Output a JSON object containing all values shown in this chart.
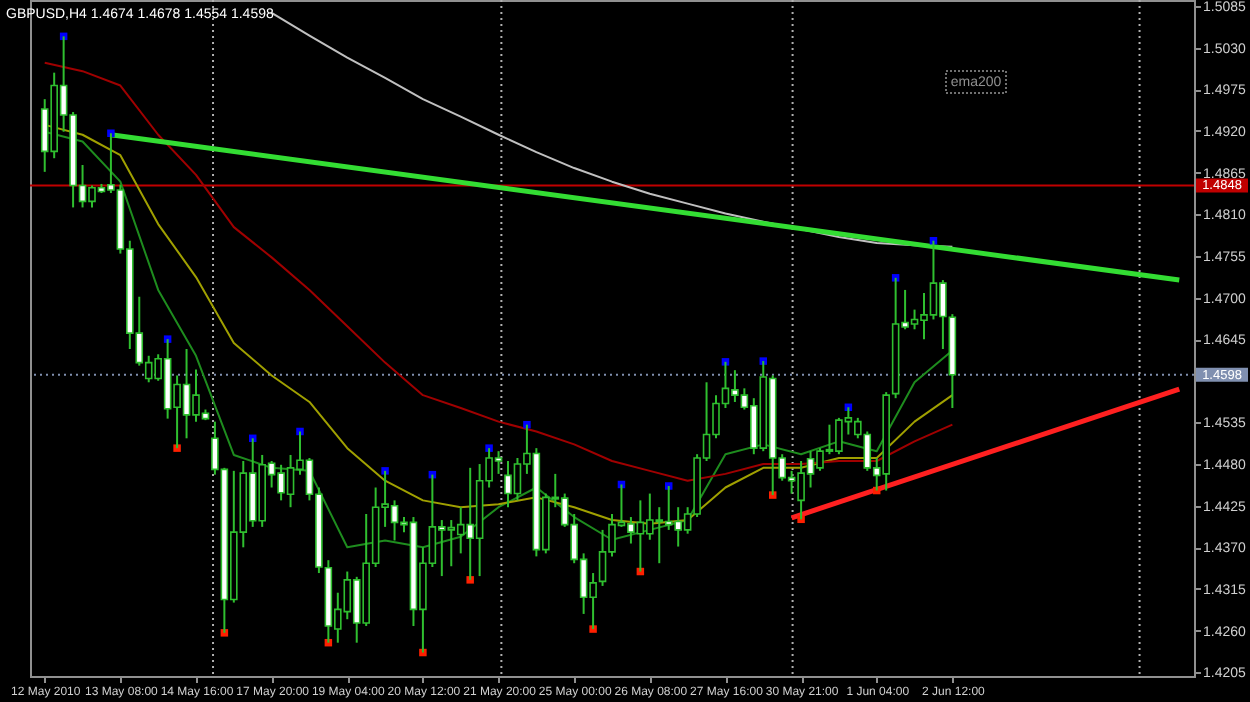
{
  "chart_data": {
    "type": "candlestick",
    "title": "GBPUSD,H4  1.4674 1.4678 1.4554 1.4598",
    "categories": [
      "12 May 2010",
      null,
      null,
      null,
      null,
      null,
      null,
      null,
      "13 May 08:00",
      null,
      null,
      null,
      null,
      null,
      null,
      null,
      "14 May 16:00",
      null,
      null,
      null,
      null,
      null,
      null,
      null,
      "17 May 20:00",
      null,
      null,
      null,
      null,
      null,
      null,
      null,
      "19 May 04:00",
      null,
      null,
      null,
      null,
      null,
      null,
      null,
      "20 May 12:00",
      null,
      null,
      null,
      null,
      null,
      null,
      null,
      "21 May 20:00",
      null,
      null,
      null,
      null,
      null,
      null,
      null,
      "25 May 00:00",
      null,
      null,
      null,
      null,
      null,
      null,
      null,
      "26 May 08:00",
      null,
      null,
      null,
      null,
      null,
      null,
      null,
      "27 May 16:00",
      null,
      null,
      null,
      null,
      null,
      null,
      null,
      "30 May 21:00",
      null,
      null,
      null,
      null,
      null,
      null,
      null,
      "1 Jun 04:00",
      null,
      null,
      null,
      null,
      null,
      null,
      null,
      "2 Jun 12:00",
      null,
      null,
      null,
      null,
      null,
      null,
      null,
      null,
      null,
      null,
      null,
      null,
      null,
      null,
      null,
      null,
      null,
      null,
      null,
      null,
      null,
      null,
      null,
      null
    ],
    "ohlc": [
      [
        1.4949,
        1.4962,
        1.4866,
        1.4893
      ],
      [
        1.4893,
        1.4997,
        1.4884,
        1.498
      ],
      [
        1.498,
        1.5045,
        1.4919,
        1.4941
      ],
      [
        1.4941,
        1.4945,
        1.4819,
        1.4848
      ],
      [
        1.4848,
        1.4875,
        1.4819,
        1.4827
      ],
      [
        1.4827,
        1.4848,
        1.4819,
        1.4845
      ],
      [
        1.4845,
        1.485,
        1.4838,
        1.484
      ],
      [
        1.4849,
        1.4917,
        1.4838,
        1.4842
      ],
      [
        1.4842,
        1.4849,
        1.4758,
        1.4764
      ],
      [
        1.4764,
        1.4775,
        1.4632,
        1.4653
      ],
      [
        1.4653,
        1.4701,
        1.461,
        1.4614
      ],
      [
        1.4593,
        1.4623,
        1.4588,
        1.4614
      ],
      [
        1.4593,
        1.4625,
        1.459,
        1.4619
      ],
      [
        1.4619,
        1.4645,
        1.454,
        1.4553
      ],
      [
        1.4555,
        1.4597,
        1.4501,
        1.4585
      ],
      [
        1.4585,
        1.4632,
        1.4514,
        1.4545
      ],
      [
        1.4545,
        1.4605,
        1.4536,
        1.4571
      ],
      [
        1.4547,
        1.4552,
        1.4538,
        1.454
      ],
      [
        1.4514,
        1.4536,
        1.4466,
        1.4473
      ],
      [
        1.4473,
        1.4475,
        1.4257,
        1.4301
      ],
      [
        1.4301,
        1.4471,
        1.4297,
        1.439
      ],
      [
        1.439,
        1.4484,
        1.437,
        1.4468
      ],
      [
        1.4468,
        1.4514,
        1.4397,
        1.4405
      ],
      [
        1.4405,
        1.4492,
        1.4397,
        1.4479
      ],
      [
        1.4481,
        1.4484,
        1.4449,
        1.4466
      ],
      [
        1.4468,
        1.4479,
        1.4432,
        1.4442
      ],
      [
        1.444,
        1.4492,
        1.4423,
        1.4475
      ],
      [
        1.4473,
        1.4523,
        1.4466,
        1.4485
      ],
      [
        1.4485,
        1.4488,
        1.4432,
        1.444
      ],
      [
        1.444,
        1.4449,
        1.4336,
        1.4344
      ],
      [
        1.4343,
        1.4353,
        1.4244,
        1.4266
      ],
      [
        1.4262,
        1.431,
        1.4244,
        1.4288
      ],
      [
        1.4285,
        1.4338,
        1.4275,
        1.4327
      ],
      [
        1.4327,
        1.4331,
        1.4244,
        1.427
      ],
      [
        1.427,
        1.4414,
        1.4266,
        1.4349
      ],
      [
        1.4349,
        1.4449,
        1.4344,
        1.4423
      ],
      [
        1.4423,
        1.4471,
        1.4397,
        1.4427
      ],
      [
        1.4425,
        1.4432,
        1.4379,
        1.4403
      ],
      [
        1.4403,
        1.441,
        1.439,
        1.44
      ],
      [
        1.4403,
        1.441,
        1.4266,
        1.4288
      ],
      [
        1.4288,
        1.437,
        1.4231,
        1.4349
      ],
      [
        1.4349,
        1.4466,
        1.4344,
        1.4397
      ],
      [
        1.4397,
        1.4406,
        1.4332,
        1.4393
      ],
      [
        1.4393,
        1.4406,
        1.4345,
        1.4396
      ],
      [
        1.4387,
        1.4423,
        1.4362,
        1.44
      ],
      [
        1.44,
        1.4475,
        1.4327,
        1.4382
      ],
      [
        1.4382,
        1.448,
        1.4332,
        1.4458
      ],
      [
        1.4458,
        1.4501,
        1.4449,
        1.4488
      ],
      [
        1.4488,
        1.4497,
        1.4467,
        1.4484
      ],
      [
        1.4465,
        1.4484,
        1.4423,
        1.4441
      ],
      [
        1.4441,
        1.4488,
        1.4432,
        1.448
      ],
      [
        1.448,
        1.4532,
        1.4467,
        1.4494
      ],
      [
        1.4494,
        1.4501,
        1.4358,
        1.4367
      ],
      [
        1.4367,
        1.4441,
        1.4362,
        1.4436
      ],
      [
        1.4436,
        1.4467,
        1.4423,
        1.4434
      ],
      [
        1.4435,
        1.4441,
        1.4397,
        1.44
      ],
      [
        1.44,
        1.4414,
        1.4349,
        1.4354
      ],
      [
        1.4354,
        1.4362,
        1.4282,
        1.4304
      ],
      [
        1.4304,
        1.4336,
        1.4262,
        1.4323
      ],
      [
        1.4325,
        1.4393,
        1.4319,
        1.4364
      ],
      [
        1.4364,
        1.4414,
        1.4358,
        1.44
      ],
      [
        1.4399,
        1.4453,
        1.4397,
        1.4403
      ],
      [
        1.4401,
        1.441,
        1.4375,
        1.439
      ],
      [
        1.4388,
        1.4432,
        1.4338,
        1.4403
      ],
      [
        1.4388,
        1.4441,
        1.438,
        1.4406
      ],
      [
        1.4406,
        1.4423,
        1.4349,
        1.4404
      ],
      [
        1.4404,
        1.4451,
        1.4393,
        1.44
      ],
      [
        1.4404,
        1.4423,
        1.4371,
        1.4393
      ],
      [
        1.4393,
        1.4423,
        1.4388,
        1.4414
      ],
      [
        1.4414,
        1.4493,
        1.441,
        1.4488
      ],
      [
        1.4488,
        1.4588,
        1.4484,
        1.4519
      ],
      [
        1.4519,
        1.4571,
        1.4514,
        1.456
      ],
      [
        1.456,
        1.4615,
        1.4554,
        1.458
      ],
      [
        1.4578,
        1.4604,
        1.4562,
        1.4571
      ],
      [
        1.4571,
        1.458,
        1.4552,
        1.4555
      ],
      [
        1.4557,
        1.4567,
        1.4493,
        1.4501
      ],
      [
        1.4501,
        1.4616,
        1.4497,
        1.4595
      ],
      [
        1.4593,
        1.4597,
        1.4439,
        1.4488
      ],
      [
        1.4488,
        1.4493,
        1.4458,
        1.4462
      ],
      [
        1.4462,
        1.4471,
        1.4441,
        1.4458
      ],
      [
        1.4432,
        1.4484,
        1.4407,
        1.4468
      ],
      [
        1.4487,
        1.4497,
        1.4449,
        1.4467
      ],
      [
        1.4475,
        1.4501,
        1.4471,
        1.4497
      ],
      [
        1.4497,
        1.4532,
        1.4493,
        1.4499
      ],
      [
        1.4497,
        1.4541,
        1.4493,
        1.4538
      ],
      [
        1.4536,
        1.4555,
        1.4519,
        1.4541
      ],
      [
        1.4519,
        1.4541,
        1.4514,
        1.4536
      ],
      [
        1.4519,
        1.4523,
        1.4471,
        1.4475
      ],
      [
        1.4475,
        1.4488,
        1.4445,
        1.4465
      ],
      [
        1.4467,
        1.4575,
        1.4445,
        1.4571
      ],
      [
        1.4573,
        1.4726,
        1.4567,
        1.4665
      ],
      [
        1.4667,
        1.471,
        1.4658,
        1.4661
      ],
      [
        1.4665,
        1.4684,
        1.4658,
        1.4671
      ],
      [
        1.467,
        1.4706,
        1.4645,
        1.4677
      ],
      [
        1.4677,
        1.4775,
        1.4671,
        1.4719
      ],
      [
        1.4719,
        1.4723,
        1.4632,
        1.4675
      ],
      [
        1.4674,
        1.4678,
        1.4554,
        1.4598
      ],
      null,
      null,
      null,
      null,
      null,
      null,
      null,
      null,
      null,
      null,
      null,
      null,
      null,
      null,
      null,
      null,
      null,
      null,
      null,
      null,
      null,
      null,
      null,
      null
    ],
    "color": "#2fbf2f",
    "colors": [
      "#ffffff",
      "#000000",
      "#ffffff",
      "#ffffff",
      "#ffffff",
      "#000000",
      "#ffffff",
      "#ffffff",
      "#ffffff",
      "#ffffff",
      "#ffffff",
      "#000000",
      "#000000",
      "#ffffff",
      "#000000",
      "#ffffff",
      "#000000",
      "#ffffff",
      "#ffffff",
      "#ffffff",
      "#000000",
      "#000000",
      "#ffffff",
      "#000000",
      "#ffffff",
      "#ffffff",
      "#000000",
      "#000000",
      "#ffffff",
      "#ffffff",
      "#ffffff",
      "#000000",
      "#000000",
      "#ffffff",
      "#000000",
      "#000000",
      "#000000",
      "#ffffff",
      "#ffffff",
      "#ffffff",
      "#000000",
      "#000000",
      "#ffffff",
      "#000000",
      "#000000",
      "#ffffff",
      "#000000",
      "#000000",
      "#ffffff",
      "#ffffff",
      "#000000",
      "#000000",
      "#ffffff",
      "#000000",
      "#ffffff",
      "#ffffff",
      "#ffffff",
      "#ffffff",
      "#000000",
      "#000000",
      "#000000",
      "#000000",
      "#ffffff",
      "#000000",
      "#000000",
      "#ffffff",
      "#ffffff",
      "#ffffff",
      "#000000",
      "#000000",
      "#000000",
      "#000000",
      "#000000",
      "#ffffff",
      "#ffffff",
      "#ffffff",
      "#000000",
      "#ffffff",
      "#ffffff",
      "#ffffff",
      "#000000",
      "#ffffff",
      "#000000",
      "#000000",
      "#000000",
      "#000000",
      "#000000",
      "#ffffff",
      "#ffffff",
      "#000000",
      "#000000",
      "#ffffff",
      "#000000",
      "#000000",
      "#000000",
      "#ffffff",
      "#ffffff",
      null,
      null,
      null,
      null,
      null,
      null,
      null,
      null,
      null,
      null,
      null,
      null,
      null,
      null,
      null,
      null,
      null,
      null,
      null,
      null,
      null,
      null,
      null,
      null
    ],
    "series": [
      {
        "type": "line",
        "color": "#1e8c1e",
        "values": [
          1.4919,
          null,
          null,
          null,
          1.4906,
          null,
          null,
          null,
          1.4853,
          null,
          null,
          null,
          1.471,
          null,
          null,
          null,
          1.4623,
          null,
          null,
          null,
          1.4492,
          null,
          null,
          null,
          1.4475,
          null,
          null,
          null,
          1.4471,
          null,
          null,
          null,
          1.437,
          null,
          null,
          null,
          1.4379,
          null,
          null,
          null,
          1.437,
          null,
          null,
          null,
          1.4384,
          null,
          null,
          null,
          1.4423,
          null,
          null,
          null,
          1.4449,
          null,
          null,
          null,
          1.441,
          null,
          null,
          null,
          1.438,
          null,
          null,
          null,
          1.4393,
          null,
          null,
          null,
          1.4406,
          null,
          null,
          null,
          1.4493,
          null,
          null,
          null,
          1.4506,
          null,
          null,
          null,
          1.4493,
          null,
          null,
          null,
          1.451,
          null,
          null,
          null,
          1.4497,
          null,
          null,
          null,
          1.4588,
          null,
          null,
          null,
          1.463,
          null,
          null,
          null,
          null,
          null,
          null,
          null,
          null,
          null,
          null,
          null,
          null,
          null,
          null,
          null,
          null,
          null,
          null,
          null,
          null,
          null,
          null,
          null,
          null
        ]
      },
      {
        "type": "line",
        "color": "#a0a000",
        "values": [
          1.4928,
          null,
          null,
          null,
          1.4915,
          null,
          null,
          null,
          1.4888,
          null,
          null,
          null,
          1.4797,
          null,
          null,
          null,
          1.4727,
          null,
          null,
          null,
          1.464,
          null,
          null,
          null,
          1.4597,
          null,
          null,
          null,
          1.4562,
          null,
          null,
          null,
          1.4501,
          null,
          null,
          null,
          1.4458,
          null,
          null,
          null,
          1.4432,
          null,
          null,
          null,
          1.4423,
          null,
          null,
          null,
          1.4427,
          null,
          null,
          null,
          1.4436,
          null,
          null,
          null,
          1.4423,
          null,
          null,
          null,
          1.4406,
          null,
          null,
          null,
          1.4401,
          null,
          null,
          null,
          1.4406,
          null,
          null,
          null,
          1.4449,
          null,
          null,
          null,
          1.4475,
          null,
          null,
          null,
          1.4475,
          null,
          null,
          null,
          1.4488,
          null,
          null,
          null,
          1.4488,
          null,
          null,
          null,
          1.4536,
          null,
          null,
          null,
          1.4571,
          null,
          null,
          null,
          null,
          null,
          null,
          null,
          null,
          null,
          null,
          null,
          null,
          null,
          null,
          null,
          null,
          null,
          null,
          null,
          null,
          null,
          null,
          null,
          null
        ]
      },
      {
        "type": "line",
        "color": "#a00000",
        "values": [
          1.501,
          null,
          null,
          null,
          1.4999,
          null,
          null,
          null,
          1.498,
          null,
          null,
          null,
          1.4915,
          null,
          null,
          null,
          1.4862,
          null,
          null,
          null,
          1.4793,
          null,
          null,
          null,
          1.4753,
          null,
          null,
          null,
          1.471,
          null,
          null,
          null,
          1.4662,
          null,
          null,
          null,
          1.4614,
          null,
          null,
          null,
          1.4571,
          null,
          null,
          null,
          1.4554,
          null,
          null,
          null,
          1.4536,
          null,
          null,
          null,
          1.4523,
          null,
          null,
          null,
          1.4506,
          null,
          null,
          null,
          1.4484,
          null,
          null,
          null,
          1.4471,
          null,
          null,
          null,
          1.4458,
          null,
          null,
          null,
          1.4467,
          null,
          null,
          null,
          1.448,
          null,
          null,
          null,
          1.448,
          null,
          null,
          null,
          1.4484,
          null,
          null,
          null,
          1.4484,
          null,
          null,
          null,
          1.451,
          null,
          null,
          null,
          1.4532,
          null,
          null,
          null,
          null,
          null,
          null,
          null,
          null,
          null,
          null,
          null,
          null,
          null,
          null,
          null,
          null,
          null,
          null,
          null,
          null,
          null,
          null,
          null,
          null
        ]
      },
      {
        "type": "line",
        "color": "#c0c0c0",
        "values": [
          null,
          null,
          null,
          null,
          null,
          null,
          null,
          null,
          null,
          null,
          null,
          null,
          null,
          null,
          null,
          null,
          null,
          null,
          null,
          null,
          null,
          null,
          null,
          null,
          1.5076,
          null,
          null,
          null,
          1.5046,
          null,
          null,
          null,
          1.5017,
          null,
          null,
          null,
          1.499,
          null,
          null,
          null,
          1.4962,
          null,
          null,
          null,
          1.4939,
          null,
          null,
          null,
          1.4915,
          null,
          null,
          null,
          1.4892,
          null,
          null,
          null,
          1.4871,
          null,
          null,
          null,
          1.4853,
          null,
          null,
          null,
          1.4837,
          null,
          null,
          null,
          1.4824,
          null,
          null,
          null,
          1.4811,
          null,
          null,
          null,
          1.48,
          null,
          null,
          null,
          1.479,
          null,
          null,
          null,
          1.478,
          null,
          null,
          null,
          1.4772,
          null,
          null,
          null,
          1.4769,
          null,
          null,
          null,
          1.4767,
          null,
          null,
          null,
          null,
          null,
          null,
          null,
          null,
          null,
          null,
          null,
          null,
          null,
          null,
          null,
          null,
          null,
          null,
          null,
          null,
          null,
          null,
          null,
          null
        ]
      },
      {
        "type": "line",
        "color": "#33dd33",
        "values": [
          null,
          null,
          null,
          null,
          null,
          null,
          null,
          1.4915,
          null,
          null,
          null,
          null,
          null,
          null,
          null,
          null,
          null,
          null,
          null,
          null,
          null,
          null,
          null,
          null,
          null,
          null,
          null,
          null,
          null,
          null,
          null,
          null,
          null,
          null,
          null,
          null,
          null,
          null,
          null,
          null,
          null,
          null,
          null,
          null,
          null,
          null,
          null,
          null,
          null,
          null,
          null,
          null,
          null,
          null,
          null,
          null,
          null,
          null,
          null,
          null,
          null,
          null,
          null,
          null,
          null,
          null,
          null,
          null,
          null,
          null,
          null,
          null,
          null,
          null,
          null,
          null,
          null,
          null,
          null,
          null,
          null,
          null,
          null,
          null,
          null,
          null,
          null,
          null,
          null,
          null,
          null,
          null,
          null,
          null,
          null,
          null,
          null,
          null,
          null,
          null,
          null,
          null,
          null,
          null,
          null,
          null,
          null,
          null,
          null,
          null,
          null,
          null,
          null,
          null,
          null,
          null,
          null,
          null,
          null,
          null,
          1.4723
        ]
      },
      {
        "type": "line",
        "color": "#ff2020",
        "values": [
          null,
          null,
          null,
          null,
          null,
          null,
          null,
          null,
          null,
          null,
          null,
          null,
          null,
          null,
          null,
          null,
          null,
          null,
          null,
          null,
          null,
          null,
          null,
          null,
          null,
          null,
          null,
          null,
          null,
          null,
          null,
          null,
          null,
          null,
          null,
          null,
          null,
          null,
          null,
          null,
          null,
          null,
          null,
          null,
          null,
          null,
          null,
          null,
          null,
          null,
          null,
          null,
          null,
          null,
          null,
          null,
          null,
          null,
          null,
          null,
          null,
          null,
          null,
          null,
          null,
          null,
          null,
          null,
          null,
          null,
          null,
          null,
          null,
          null,
          null,
          null,
          null,
          null,
          null,
          1.4409,
          null,
          null,
          null,
          null,
          null,
          null,
          null,
          null,
          null,
          null,
          null,
          null,
          null,
          null,
          null,
          null,
          null,
          null,
          null,
          null,
          null,
          null,
          null,
          null,
          null,
          null,
          null,
          null,
          null,
          null,
          null,
          null,
          null,
          null,
          null,
          null,
          null,
          null,
          null,
          null,
          1.4579
        ]
      },
      {
        "type": "scatter",
        "marker": "square",
        "color": "#0000ff",
        "values": [
          null,
          null,
          1.5045,
          null,
          null,
          null,
          null,
          1.4917,
          null,
          null,
          null,
          null,
          null,
          1.4645,
          null,
          null,
          null,
          null,
          null,
          null,
          null,
          null,
          1.4514,
          null,
          null,
          null,
          null,
          1.4523,
          null,
          null,
          null,
          null,
          null,
          null,
          null,
          null,
          1.4471,
          null,
          null,
          null,
          null,
          1.4466,
          null,
          null,
          null,
          null,
          null,
          1.4501,
          null,
          null,
          null,
          1.4532,
          null,
          null,
          null,
          null,
          null,
          null,
          null,
          null,
          null,
          1.4453,
          null,
          null,
          null,
          null,
          1.4451,
          null,
          null,
          null,
          null,
          null,
          1.4615,
          null,
          null,
          null,
          1.4616,
          null,
          null,
          null,
          null,
          null,
          null,
          null,
          null,
          1.4555,
          null,
          null,
          null,
          null,
          1.4726,
          null,
          null,
          null,
          1.4775,
          null,
          null,
          null,
          null,
          null,
          null,
          null,
          null,
          null,
          null,
          null,
          null,
          null,
          null,
          null,
          null,
          null,
          null,
          null,
          null,
          null,
          null,
          null,
          null,
          null,
          null
        ]
      },
      {
        "type": "scatter",
        "marker": "square",
        "color": "#ff2000",
        "values": [
          null,
          null,
          null,
          null,
          null,
          null,
          null,
          null,
          null,
          null,
          null,
          null,
          null,
          null,
          1.4501,
          null,
          null,
          null,
          null,
          1.4257,
          null,
          null,
          null,
          null,
          null,
          null,
          null,
          null,
          null,
          null,
          1.4244,
          null,
          null,
          null,
          null,
          null,
          null,
          null,
          null,
          null,
          1.4231,
          null,
          null,
          null,
          null,
          1.4327,
          null,
          null,
          null,
          null,
          null,
          null,
          null,
          null,
          null,
          null,
          null,
          null,
          1.4262,
          null,
          null,
          null,
          null,
          1.4338,
          null,
          null,
          null,
          null,
          null,
          null,
          null,
          null,
          null,
          null,
          null,
          null,
          null,
          1.4439,
          null,
          null,
          1.4407,
          null,
          null,
          null,
          null,
          null,
          null,
          null,
          1.4445,
          null,
          null,
          null,
          null,
          null,
          null,
          null,
          null,
          null,
          null,
          null,
          null,
          null,
          null,
          null,
          null,
          null,
          null,
          null,
          null,
          null,
          null,
          null,
          null,
          null,
          null,
          null,
          null,
          null,
          null,
          null,
          null
        ]
      }
    ],
    "ylim": [
      1.42,
      1.5093
    ],
    "yticks": [
      1.5085,
      {
        "value": 1.503,
        "label": "1.5030"
      },
      1.4975,
      {
        "value": 1.492,
        "label": "1.4920"
      },
      1.4865,
      {
        "value": 1.481,
        "label": "1.4810"
      },
      1.4755,
      {
        "value": 1.47,
        "label": "1.4700"
      },
      1.4645,
      1.4535,
      {
        "value": 1.448,
        "label": "1.4480"
      },
      1.4425,
      {
        "value": 1.437,
        "label": "1.4370"
      },
      1.4315,
      {
        "value": 1.426,
        "label": "1.4260"
      },
      1.4205
    ],
    "ref_lines": [
      {
        "axis": "y",
        "value": 1.4848,
        "label": "1.4848",
        "color": "#c00000",
        "line_style": "solid"
      },
      {
        "axis": "y",
        "value": 1.4598,
        "label": "1.4598",
        "color": "#8090b0",
        "line_style": "dotted"
      }
    ],
    "annotations": [
      "ema200"
    ]
  }
}
